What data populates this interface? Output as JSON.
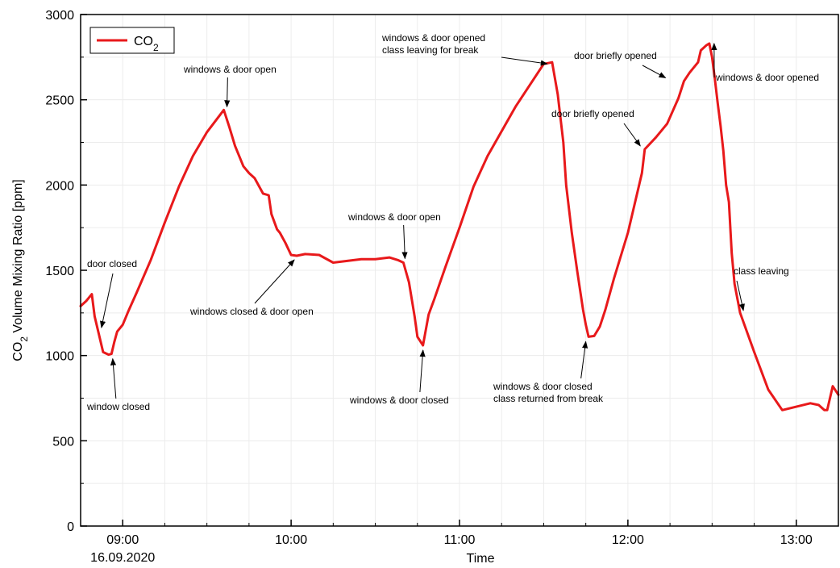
{
  "chart_data": {
    "type": "line",
    "xlabel": "Time",
    "date_label": "16.09.2020",
    "ylabel": "CO2 Volume Mixing Ratio [ppm]",
    "ylabel_parts": {
      "pre": "CO",
      "sub": "2",
      "post": " Volume Mixing Ratio [ppm]"
    },
    "ylim": [
      0,
      3000
    ],
    "xlim": [
      "08:45",
      "13:15"
    ],
    "y_ticks": [
      0,
      500,
      1000,
      1500,
      2000,
      2500,
      3000
    ],
    "x_ticks": [
      "09:00",
      "10:00",
      "11:00",
      "12:00",
      "13:00"
    ],
    "grid": true,
    "legend": {
      "placement": "top-left",
      "label_pre": "CO",
      "label_sub": "2"
    },
    "series": [
      {
        "name": "CO2",
        "color": "#e8191b",
        "x": [
          "08:45",
          "08:47",
          "08:49",
          "08:50",
          "08:52",
          "08:53",
          "08:55",
          "08:56",
          "08:57",
          "08:58",
          "09:00",
          "09:01",
          "09:02",
          "09:05",
          "09:10",
          "09:15",
          "09:20",
          "09:25",
          "09:30",
          "09:36",
          "09:38",
          "09:40",
          "09:43",
          "09:45",
          "09:47",
          "09:50",
          "09:52",
          "09:53",
          "09:55",
          "09:56",
          "09:58",
          "10:00",
          "10:02",
          "10:05",
          "10:10",
          "10:15",
          "10:20",
          "10:25",
          "10:30",
          "10:35",
          "10:38",
          "10:40",
          "10:42",
          "10:44",
          "10:45",
          "10:47",
          "10:49",
          "10:51",
          "10:55",
          "11:00",
          "11:05",
          "11:10",
          "11:20",
          "11:30",
          "11:33",
          "11:35",
          "11:37",
          "11:38",
          "11:40",
          "11:42",
          "11:44",
          "11:45",
          "11:46",
          "11:48",
          "11:50",
          "11:52",
          "11:55",
          "12:00",
          "12:05",
          "12:06",
          "12:10",
          "12:14",
          "12:18",
          "12:20",
          "12:22",
          "12:25",
          "12:26",
          "12:28",
          "12:29",
          "12:30",
          "12:31",
          "12:32",
          "12:33",
          "12:34",
          "12:35",
          "12:36",
          "12:37",
          "12:38",
          "12:40",
          "12:45",
          "12:50",
          "12:55",
          "13:00",
          "13:05",
          "13:08",
          "13:10",
          "13:11",
          "13:13",
          "13:15"
        ],
        "y": [
          1290,
          1320,
          1360,
          1230,
          1090,
          1020,
          1005,
          1010,
          1080,
          1140,
          1180,
          1220,
          1260,
          1370,
          1560,
          1780,
          1990,
          2170,
          2310,
          2440,
          2340,
          2230,
          2110,
          2070,
          2040,
          1950,
          1940,
          1830,
          1740,
          1720,
          1660,
          1590,
          1585,
          1595,
          1590,
          1545,
          1555,
          1565,
          1565,
          1575,
          1560,
          1545,
          1430,
          1230,
          1110,
          1060,
          1240,
          1330,
          1520,
          1750,
          1990,
          2170,
          2460,
          2710,
          2720,
          2530,
          2250,
          2000,
          1720,
          1490,
          1270,
          1180,
          1110,
          1115,
          1170,
          1270,
          1450,
          1720,
          2070,
          2210,
          2280,
          2360,
          2510,
          2610,
          2660,
          2720,
          2790,
          2820,
          2830,
          2750,
          2620,
          2480,
          2350,
          2200,
          2000,
          1900,
          1600,
          1420,
          1250,
          1020,
          800,
          680,
          700,
          720,
          710,
          680,
          680,
          820,
          770
        ]
      }
    ],
    "annotations": [
      {
        "lines": [
          "door closed"
        ],
        "at": [
          "08:53",
          1140
        ]
      },
      {
        "lines": [
          "window closed"
        ],
        "at": [
          "08:55",
          1005
        ]
      },
      {
        "lines": [
          "windows & door open"
        ],
        "at": [
          "09:36",
          2440
        ]
      },
      {
        "lines": [
          "windows closed & door open"
        ],
        "at": [
          "10:00",
          1590
        ]
      },
      {
        "lines": [
          "windows & door open"
        ],
        "at": [
          "10:40",
          1545
        ]
      },
      {
        "lines": [
          "windows & door closed"
        ],
        "at": [
          "10:47",
          1060
        ]
      },
      {
        "lines": [
          "windows & door opened",
          "class leaving for break"
        ],
        "at": [
          "11:33",
          2720
        ]
      },
      {
        "lines": [
          "windows & door closed",
          "class returned from break"
        ],
        "at": [
          "11:45",
          1110
        ]
      },
      {
        "lines": [
          "door briefly opened"
        ],
        "at": [
          "12:05",
          2210
        ]
      },
      {
        "lines": [
          "door briefly opened"
        ],
        "at": [
          "12:14",
          2610
        ]
      },
      {
        "lines": [
          "windows & door opened"
        ],
        "at": [
          "12:29",
          2830
        ]
      },
      {
        "lines": [
          "class leaving"
        ],
        "at": [
          "12:40",
          1250
        ]
      }
    ]
  }
}
